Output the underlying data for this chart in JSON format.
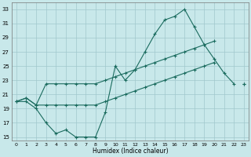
{
  "xlabel": "Humidex (Indice chaleur)",
  "background_color": "#c8e8ea",
  "grid_color": "#a0c8cc",
  "line_color": "#1a6b5e",
  "xlim": [
    -0.5,
    23.5
  ],
  "ylim": [
    14.5,
    34.0
  ],
  "xticks": [
    0,
    1,
    2,
    3,
    4,
    5,
    6,
    7,
    8,
    9,
    10,
    11,
    12,
    13,
    14,
    15,
    16,
    17,
    18,
    19,
    20,
    21,
    22,
    23
  ],
  "yticks": [
    15,
    17,
    19,
    21,
    23,
    25,
    27,
    29,
    31,
    33
  ],
  "line1_x": [
    0,
    1,
    2,
    3,
    4,
    5,
    6,
    7,
    8,
    9,
    10,
    11,
    12,
    13,
    14,
    15,
    16,
    17,
    18,
    19,
    20,
    21,
    22,
    23
  ],
  "line1_y": [
    20,
    20,
    19,
    17,
    15.5,
    16,
    15,
    15,
    15,
    18.5,
    25,
    23,
    24.5,
    27,
    29.5,
    31.5,
    32,
    33,
    30.5,
    28,
    26,
    24,
    22.5,
    null
  ],
  "line2_x": [
    0,
    1,
    2,
    3,
    4,
    5,
    6,
    7,
    8,
    9,
    10,
    11,
    12,
    13,
    14,
    15,
    16,
    17,
    18,
    19,
    20,
    22,
    23
  ],
  "line2_y": [
    20,
    20.5,
    19.5,
    22.5,
    22.5,
    22.5,
    22.5,
    22.5,
    22.5,
    23.0,
    23.5,
    24.0,
    24.5,
    25.0,
    25.5,
    26.0,
    26.5,
    27.0,
    27.5,
    28.0,
    28.5,
    null,
    22.5
  ],
  "line3_x": [
    0,
    1,
    2,
    3,
    4,
    5,
    6,
    7,
    8,
    9,
    10,
    11,
    12,
    13,
    14,
    15,
    16,
    17,
    18,
    19,
    20,
    22,
    23
  ],
  "line3_y": [
    20,
    20.5,
    19.5,
    19.5,
    19.5,
    19.5,
    19.5,
    19.5,
    19.5,
    20.0,
    20.5,
    21.0,
    21.5,
    22.0,
    22.5,
    23.0,
    23.5,
    24.0,
    24.5,
    25.0,
    25.5,
    null,
    22.5
  ]
}
